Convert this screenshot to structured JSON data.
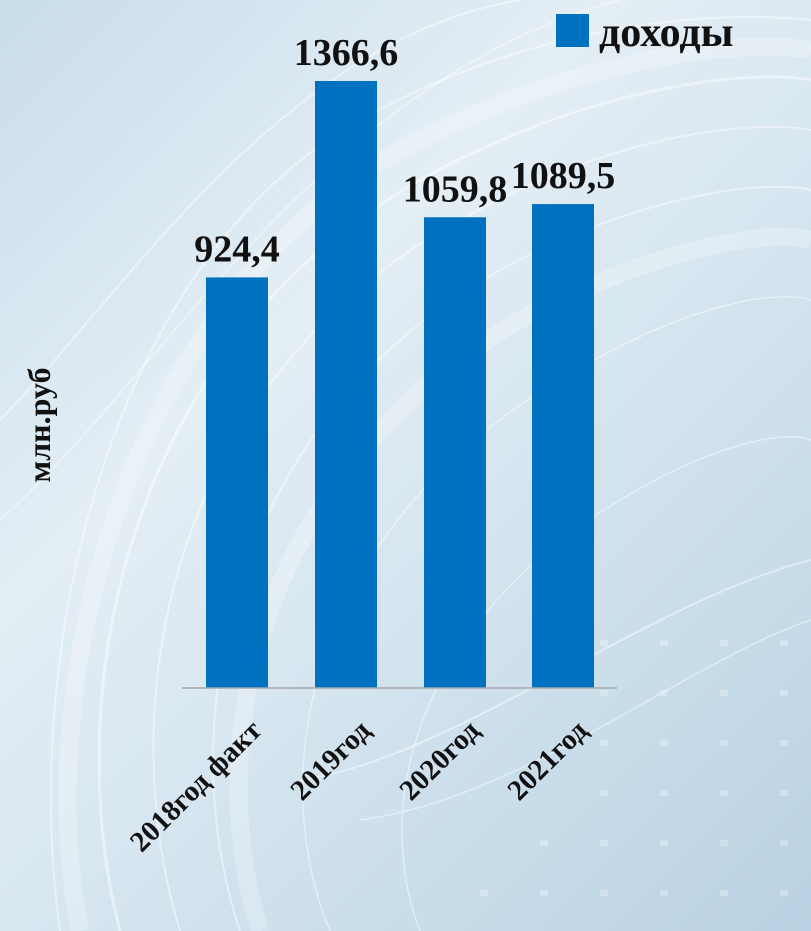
{
  "chart_data": {
    "type": "bar",
    "categories": [
      "2018год факт",
      "2019год",
      "2020год",
      "2021год"
    ],
    "series": [
      {
        "name": "доходы",
        "values": [
          924.4,
          1366.6,
          1059.8,
          1089.5
        ],
        "labels": [
          "924,4",
          "1366,6",
          "1059,8",
          "1089,5"
        ],
        "color": "#0070c0"
      }
    ],
    "title": "",
    "xlabel": "",
    "ylabel": "млн.руб",
    "ylim": [
      0,
      1366.6
    ],
    "grid": false,
    "legend_position": "top-right"
  }
}
